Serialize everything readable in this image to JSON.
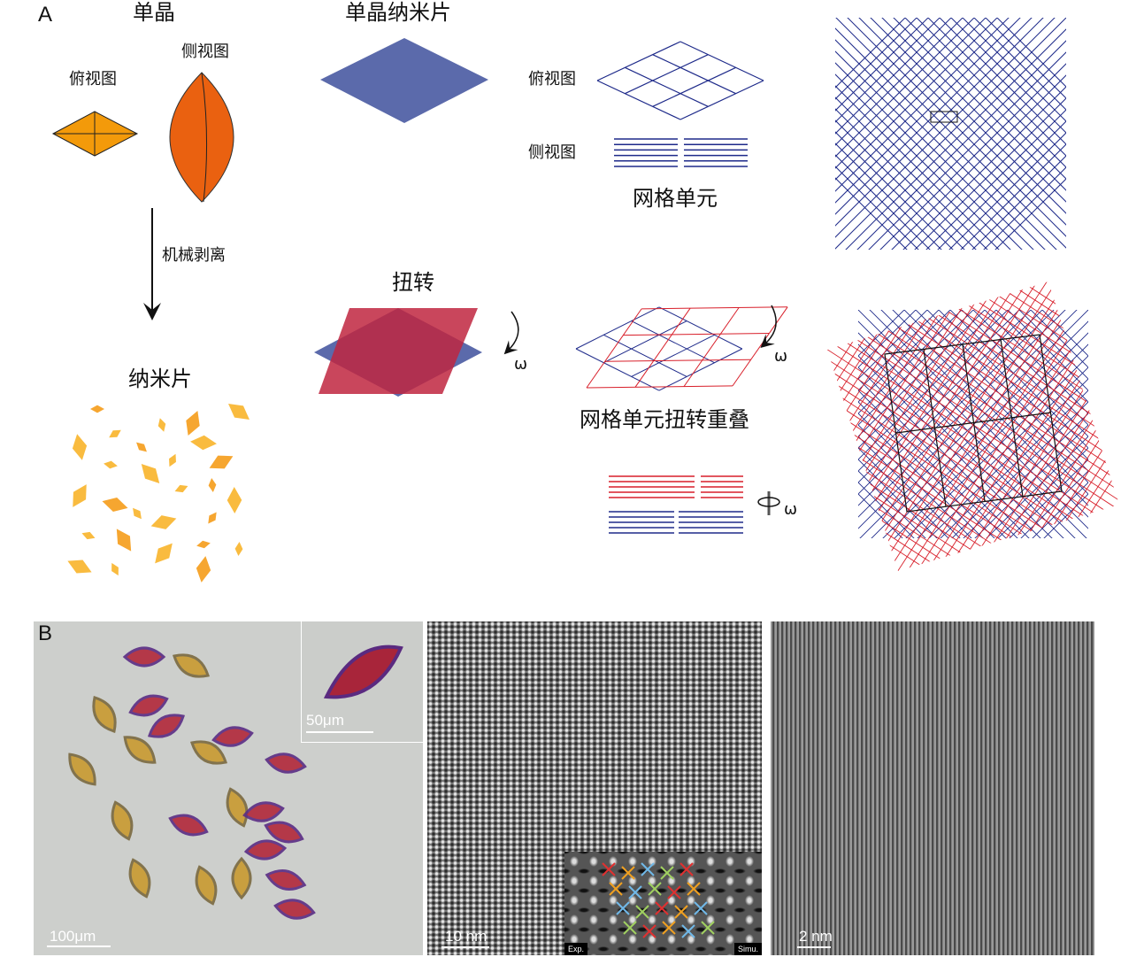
{
  "panel_a": {
    "label": "A",
    "single_crystal": "单晶",
    "top_view": "俯视图",
    "side_view": "侧视图",
    "exfoliation": "机械剥离",
    "nanosheets": "纳米片",
    "single_crystal_nanosheet": "单晶纳米片",
    "grid_top_view": "俯视图",
    "grid_side_view": "侧视图",
    "grid_unit": "网格单元",
    "twist": "扭转",
    "omega": "ω",
    "twisted_overlap": "网格单元扭转重叠",
    "colors": {
      "crystal": "#f39a0a",
      "leaf": "#ea6110",
      "sheet": "#5b6aab",
      "twist_red": "#c0263f",
      "lattice_blue": "#1e2a8a",
      "lattice_red": "#d81f2a",
      "flake": "#f8b42a"
    }
  },
  "panel_b": {
    "label": "B",
    "optical_scale": "100μm",
    "inset_scale": "50μm",
    "tem_scale": "10 nm",
    "tem_tag_exp": "Exp.",
    "tem_tag_simu": "Simu.",
    "hrtem_scale": "2 nm"
  }
}
